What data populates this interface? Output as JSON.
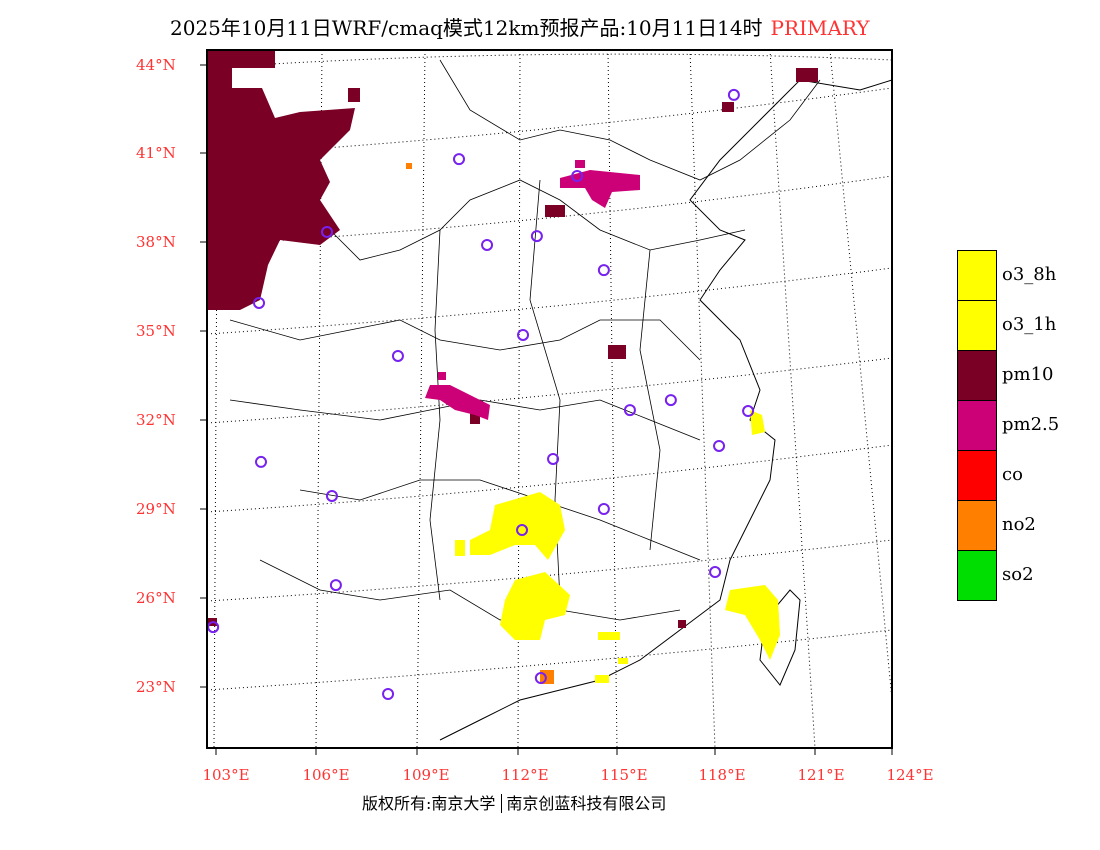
{
  "title": {
    "text": "2025年10月11日WRF/cmaq模式12km预报产品:10月11日14时",
    "species": "PRIMARY"
  },
  "lat_labels": [
    "44°N",
    "41°N",
    "38°N",
    "35°N",
    "32°N",
    "29°N",
    "26°N",
    "23°N"
  ],
  "lon_labels": [
    "103°E",
    "106°E",
    "109°E",
    "112°E",
    "115°E",
    "118°E",
    "121°E",
    "124°E"
  ],
  "legend": [
    {
      "label": "o3_8h",
      "color": "#ffff00"
    },
    {
      "label": "o3_1h",
      "color": "#ffff00"
    },
    {
      "label": "pm10",
      "color": "#7a0026"
    },
    {
      "label": "pm2.5",
      "color": "#cc0077"
    },
    {
      "label": "co",
      "color": "#ff0000"
    },
    {
      "label": "no2",
      "color": "#ff8000"
    },
    {
      "label": "so2",
      "color": "#00dd00"
    }
  ],
  "stations": [
    [
      118.33,
      42.99
    ],
    [
      110.0,
      40.82
    ],
    [
      113.58,
      40.25
    ],
    [
      110.85,
      37.92
    ],
    [
      112.36,
      38.22
    ],
    [
      106.0,
      38.36
    ],
    [
      114.39,
      37.07
    ],
    [
      103.94,
      35.96
    ],
    [
      111.94,
      34.88
    ],
    [
      108.15,
      34.17
    ],
    [
      116.42,
      32.68
    ],
    [
      115.18,
      32.34
    ],
    [
      118.76,
      32.31
    ],
    [
      117.88,
      31.13
    ],
    [
      112.85,
      30.69
    ],
    [
      104.0,
      30.59
    ],
    [
      106.15,
      29.44
    ],
    [
      114.39,
      29.0
    ],
    [
      111.91,
      28.29
    ],
    [
      117.76,
      26.87
    ],
    [
      106.27,
      26.43
    ],
    [
      102.55,
      25.01
    ],
    [
      112.48,
      23.29
    ],
    [
      107.85,
      22.75
    ]
  ],
  "footer": {
    "left": "版权所有:南京大学",
    "right": "南京创蓝科技有限公司"
  }
}
